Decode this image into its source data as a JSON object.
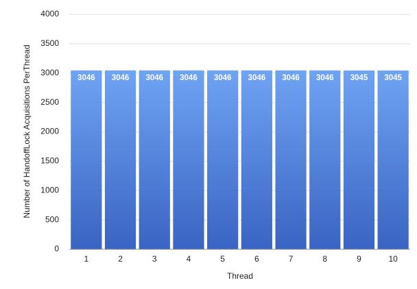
{
  "chart_data": {
    "type": "bar",
    "x_label": "Thread",
    "y_label": "Number of HandoffLock Acquisitions PerThread",
    "categories": [
      "1",
      "2",
      "3",
      "4",
      "5",
      "6",
      "7",
      "8",
      "9",
      "10"
    ],
    "values": [
      3046,
      3046,
      3046,
      3046,
      3046,
      3046,
      3046,
      3046,
      3045,
      3045
    ],
    "color": {
      "top": "#6fa3f3",
      "bottom": "#3a64c3"
    },
    "ylim": [
      0,
      4000
    ],
    "yticks": [
      0,
      500,
      1000,
      1500,
      2000,
      2500,
      3000,
      3500,
      4000
    ],
    "grid": true
  }
}
